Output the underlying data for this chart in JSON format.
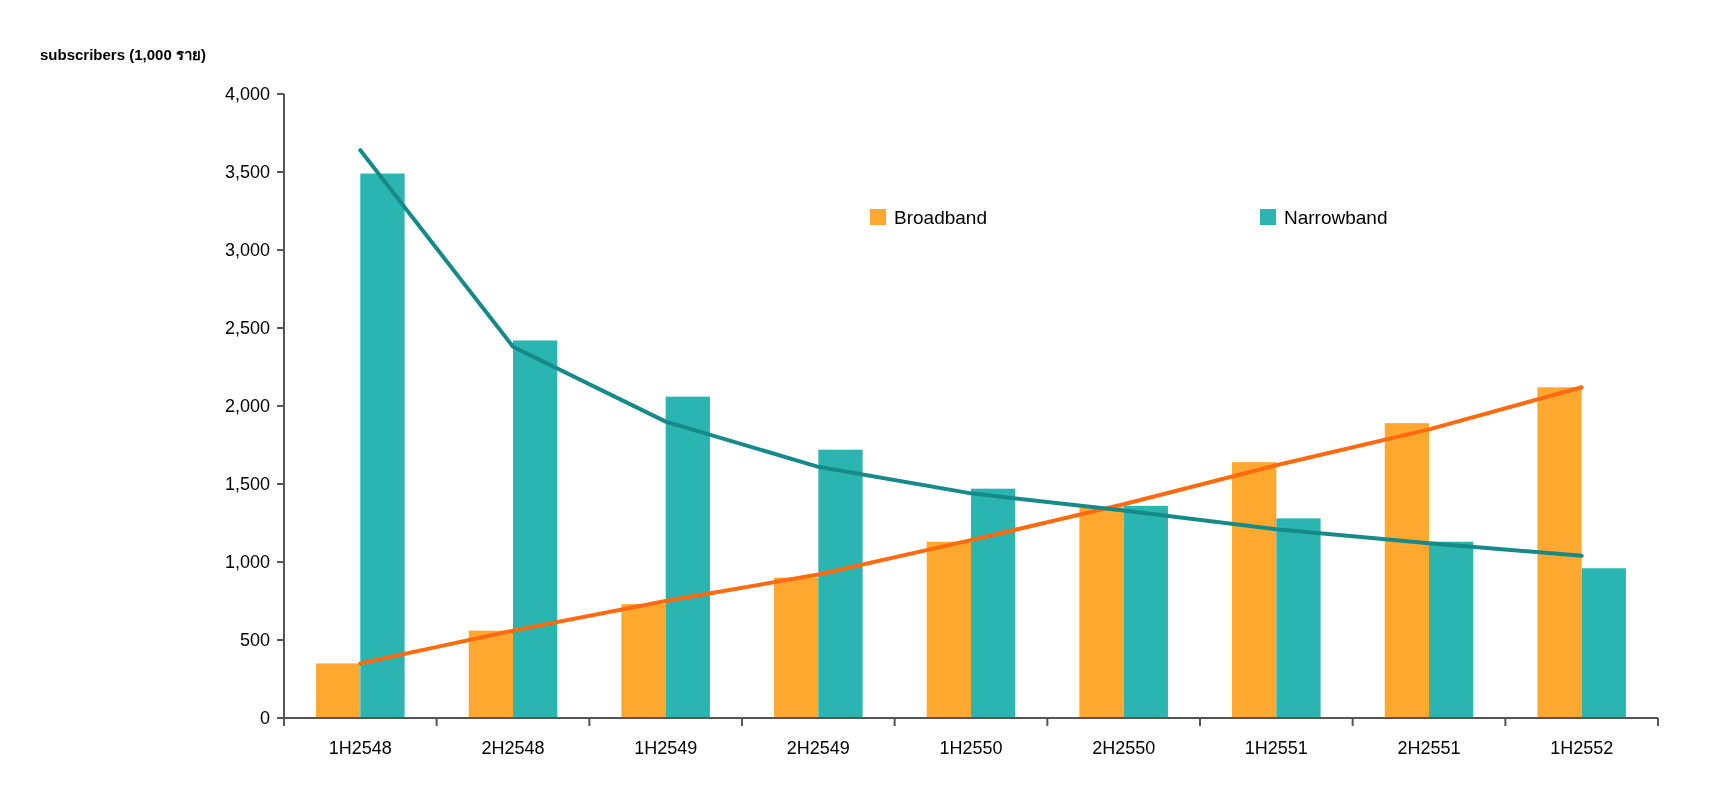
{
  "chart_data": {
    "type": "bar",
    "ylabel": "subscribers (1,000 ราย)",
    "categories": [
      "1H2548",
      "2H2548",
      "1H2549",
      "2H2549",
      "1H2550",
      "2H2550",
      "1H2551",
      "2H2551",
      "1H2552"
    ],
    "series": [
      {
        "name": "Broadband",
        "color": "#ffa830",
        "values": [
          350,
          560,
          730,
          900,
          1130,
          1350,
          1640,
          1890,
          2120
        ]
      },
      {
        "name": "Narrowband",
        "color": "#2ab5b0",
        "values": [
          3490,
          2420,
          2060,
          1720,
          1470,
          1360,
          1280,
          1130,
          960
        ]
      },
      {
        "type": "line",
        "color": "#ff6a10",
        "x": [
          "1H2548",
          "2H2548",
          "1H2549",
          "2H2549",
          "1H2550",
          "2H2550",
          "1H2551",
          "2H2551",
          "1H2552"
        ],
        "values": [
          350,
          560,
          750,
          920,
          1140,
          1370,
          1620,
          1850,
          2120
        ]
      },
      {
        "type": "line",
        "color": "#168a88",
        "x": [
          "1H2548",
          "2H2548",
          "1H2549",
          "2H2549",
          "1H2550",
          "2H2550",
          "1H2551",
          "2H2551",
          "1H2552"
        ],
        "values": [
          3640,
          2380,
          1900,
          1610,
          1440,
          1330,
          1210,
          1120,
          1040
        ]
      }
    ],
    "ylim": [
      0,
      4000
    ],
    "yticks": [
      {
        "value": 0,
        "label": "0"
      },
      {
        "value": 500,
        "label": "500"
      },
      {
        "value": 1000,
        "label": "1,000"
      },
      {
        "value": 1500,
        "label": "1,500"
      },
      {
        "value": 2000,
        "label": "2,000"
      },
      {
        "value": 2500,
        "label": "2,500"
      },
      {
        "value": 3000,
        "label": "3,000"
      },
      {
        "value": 3500,
        "label": "3,500"
      },
      {
        "value": 4000,
        "label": "4,000"
      }
    ],
    "legend": "top right",
    "grid": false
  }
}
